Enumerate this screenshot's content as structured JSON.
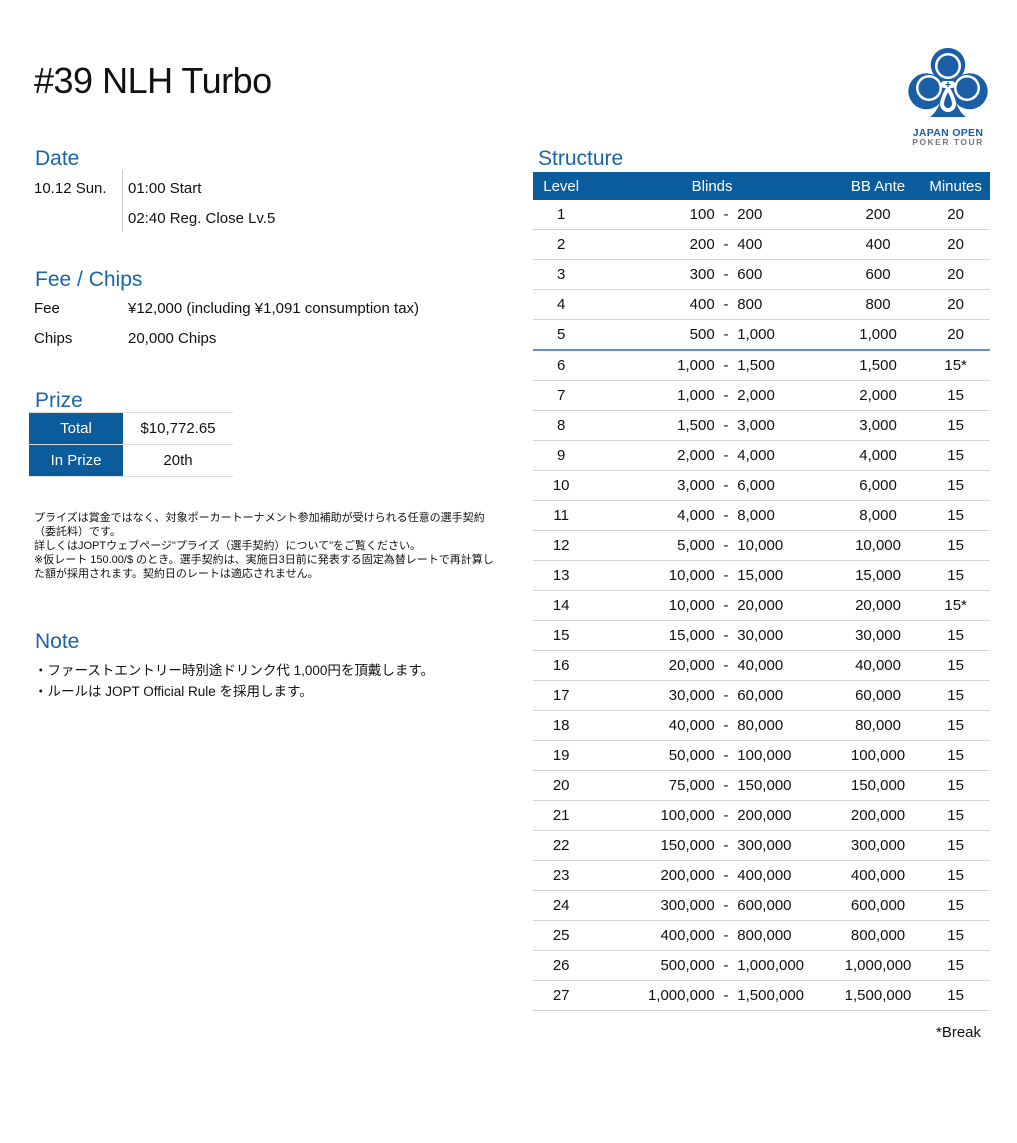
{
  "title": "#39 NLH Turbo",
  "logo": {
    "line1": "JAPAN OPEN",
    "line2": "POKER TOUR",
    "color": "#1a5ea6"
  },
  "accent_color": "#0b5c9c",
  "date": {
    "heading": "Date",
    "day": "10.12 Sun.",
    "start": "01:00 Start",
    "reg_close": "02:40 Reg. Close Lv.5"
  },
  "fee_chips": {
    "heading": "Fee / Chips",
    "fee_label": "Fee",
    "fee_value": "¥12,000 (including ¥1,091 consumption tax)",
    "chips_label": "Chips",
    "chips_value": "20,000 Chips"
  },
  "prize": {
    "heading": "Prize",
    "total_label": "Total",
    "total_value": "$10,772.65",
    "in_prize_label": "In Prize",
    "in_prize_value": "20th",
    "disclaimer": [
      "プライズは賞金ではなく、対象ポーカートーナメント参加補助が受けられる任意の選手契約（委託料）です。",
      "詳しくはJOPTウェブページ\"プライズ（選手契約）について\"をご覧ください。",
      "※仮レート 150.00/$ のとき。選手契約は、実施日3日前に発表する固定為替レートで再計算した額が採用されます。契約日のレートは適応されません。"
    ]
  },
  "note": {
    "heading": "Note",
    "items": [
      "・ファーストエントリー時別途ドリンク代  1,000円を頂戴します。",
      "・ルールは JOPT Official Rule を採用します。"
    ]
  },
  "structure": {
    "heading": "Structure",
    "columns": [
      "Level",
      "Blinds",
      "BB Ante",
      "Minutes"
    ],
    "blind_separator": "-",
    "reg_close_after_level": 5,
    "rows": [
      [
        "1",
        "100",
        "200",
        "200",
        "20"
      ],
      [
        "2",
        "200",
        "400",
        "400",
        "20"
      ],
      [
        "3",
        "300",
        "600",
        "600",
        "20"
      ],
      [
        "4",
        "400",
        "800",
        "800",
        "20"
      ],
      [
        "5",
        "500",
        "1,000",
        "1,000",
        "20"
      ],
      [
        "6",
        "1,000",
        "1,500",
        "1,500",
        "15*"
      ],
      [
        "7",
        "1,000",
        "2,000",
        "2,000",
        "15"
      ],
      [
        "8",
        "1,500",
        "3,000",
        "3,000",
        "15"
      ],
      [
        "9",
        "2,000",
        "4,000",
        "4,000",
        "15"
      ],
      [
        "10",
        "3,000",
        "6,000",
        "6,000",
        "15"
      ],
      [
        "11",
        "4,000",
        "8,000",
        "8,000",
        "15"
      ],
      [
        "12",
        "5,000",
        "10,000",
        "10,000",
        "15"
      ],
      [
        "13",
        "10,000",
        "15,000",
        "15,000",
        "15"
      ],
      [
        "14",
        "10,000",
        "20,000",
        "20,000",
        "15*"
      ],
      [
        "15",
        "15,000",
        "30,000",
        "30,000",
        "15"
      ],
      [
        "16",
        "20,000",
        "40,000",
        "40,000",
        "15"
      ],
      [
        "17",
        "30,000",
        "60,000",
        "60,000",
        "15"
      ],
      [
        "18",
        "40,000",
        "80,000",
        "80,000",
        "15"
      ],
      [
        "19",
        "50,000",
        "100,000",
        "100,000",
        "15"
      ],
      [
        "20",
        "75,000",
        "150,000",
        "150,000",
        "15"
      ],
      [
        "21",
        "100,000",
        "200,000",
        "200,000",
        "15"
      ],
      [
        "22",
        "150,000",
        "300,000",
        "300,000",
        "15"
      ],
      [
        "23",
        "200,000",
        "400,000",
        "400,000",
        "15"
      ],
      [
        "24",
        "300,000",
        "600,000",
        "600,000",
        "15"
      ],
      [
        "25",
        "400,000",
        "800,000",
        "800,000",
        "15"
      ],
      [
        "26",
        "500,000",
        "1,000,000",
        "1,000,000",
        "15"
      ],
      [
        "27",
        "1,000,000",
        "1,500,000",
        "1,500,000",
        "15"
      ]
    ],
    "footnote": "*Break"
  }
}
